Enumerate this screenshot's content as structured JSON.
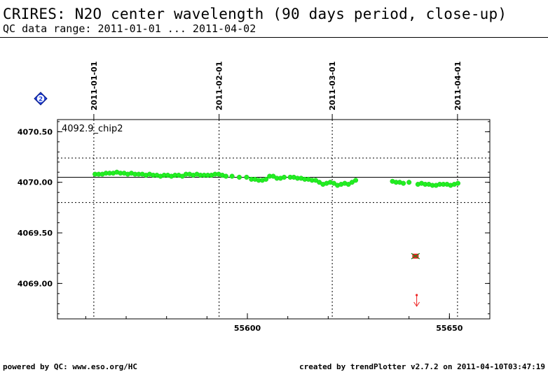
{
  "header": {
    "title": "CRIRES: N2O center wavelength (90 days period, close-up)",
    "subtitle": "QC data range: 2011-01-01 ... 2011-04-02"
  },
  "footer": {
    "left": "powered by QC: www.eso.org/HC",
    "right": "created by trendPlotter v2.7.2 on 2011-04-10T03:47:19"
  },
  "badge": {
    "label": "2",
    "color": "#1f3fd6"
  },
  "colors": {
    "points": "#22ee22",
    "outlier": "#ee2222"
  },
  "chart_data": {
    "type": "scatter",
    "panel_label": "4092.9_chip2",
    "xlim": [
      55553,
      55660
    ],
    "ylim": [
      4068.65,
      4070.62
    ],
    "x_ticks": [
      55600,
      55650
    ],
    "y_ticks": [
      4069.0,
      4069.5,
      4070.0,
      4070.5
    ],
    "y_tick_labels": [
      "4069.00",
      "4069.50",
      "4070.00",
      "4070.50"
    ],
    "reference_line": 4070.05,
    "threshold_lines": [
      4070.24,
      4069.8
    ],
    "date_markers": [
      {
        "label": "2011-01-01",
        "mjd": 55562
      },
      {
        "label": "2011-02-01",
        "mjd": 55593
      },
      {
        "label": "2011-03-01",
        "mjd": 55621
      },
      {
        "label": "2011-04-01",
        "mjd": 55652
      }
    ],
    "series": [
      {
        "values": [
          [
            55562.3,
            4070.08
          ],
          [
            55563.2,
            4070.08
          ],
          [
            55564.1,
            4070.08
          ],
          [
            55565.0,
            4070.09
          ],
          [
            55565.9,
            4070.09
          ],
          [
            55566.8,
            4070.09
          ],
          [
            55567.7,
            4070.1
          ],
          [
            55568.6,
            4070.09
          ],
          [
            55569.5,
            4070.09
          ],
          [
            55570.4,
            4070.08
          ],
          [
            55571.3,
            4070.09
          ],
          [
            55572.2,
            4070.08
          ],
          [
            55573.1,
            4070.08
          ],
          [
            55574.0,
            4070.08
          ],
          [
            55574.9,
            4070.07
          ],
          [
            55575.8,
            4070.08
          ],
          [
            55576.7,
            4070.07
          ],
          [
            55577.6,
            4070.07
          ],
          [
            55578.5,
            4070.06
          ],
          [
            55579.4,
            4070.07
          ],
          [
            55580.3,
            4070.07
          ],
          [
            55581.2,
            4070.06
          ],
          [
            55582.1,
            4070.07
          ],
          [
            55583.0,
            4070.07
          ],
          [
            55583.9,
            4070.06
          ],
          [
            55584.8,
            4070.08
          ],
          [
            55585.7,
            4070.08
          ],
          [
            55586.6,
            4070.07
          ],
          [
            55587.5,
            4070.08
          ],
          [
            55588.4,
            4070.07
          ],
          [
            55589.3,
            4070.07
          ],
          [
            55590.2,
            4070.07
          ],
          [
            55591.1,
            4070.07
          ],
          [
            55592.0,
            4070.08
          ],
          [
            55592.9,
            4070.08
          ],
          [
            55593.8,
            4070.07
          ],
          [
            55594.7,
            4070.06
          ],
          [
            55596.2,
            4070.06
          ],
          [
            55598.0,
            4070.05
          ],
          [
            55599.8,
            4070.05
          ],
          [
            55601.0,
            4070.03
          ],
          [
            55601.9,
            4070.03
          ],
          [
            55602.8,
            4070.02
          ],
          [
            55603.7,
            4070.02
          ],
          [
            55604.6,
            4070.03
          ],
          [
            55605.5,
            4070.06
          ],
          [
            55606.4,
            4070.06
          ],
          [
            55607.3,
            4070.04
          ],
          [
            55608.2,
            4070.04
          ],
          [
            55609.1,
            4070.05
          ],
          [
            55610.6,
            4070.05
          ],
          [
            55611.5,
            4070.05
          ],
          [
            55612.4,
            4070.04
          ],
          [
            55613.3,
            4070.04
          ],
          [
            55614.2,
            4070.03
          ],
          [
            55615.1,
            4070.03
          ],
          [
            55616.0,
            4070.02
          ],
          [
            55616.9,
            4070.02
          ],
          [
            55617.8,
            4070.0
          ],
          [
            55618.7,
            4069.98
          ],
          [
            55619.6,
            4069.99
          ],
          [
            55620.5,
            4070.0
          ],
          [
            55621.4,
            4069.99
          ],
          [
            55622.3,
            4069.97
          ],
          [
            55623.2,
            4069.98
          ],
          [
            55624.1,
            4069.99
          ],
          [
            55625.0,
            4069.98
          ],
          [
            55625.9,
            4070.0
          ],
          [
            55626.8,
            4070.02
          ],
          [
            55635.9,
            4070.01
          ],
          [
            55636.8,
            4070.0
          ],
          [
            55637.7,
            4070.0
          ],
          [
            55638.6,
            4069.99
          ],
          [
            55640.0,
            4070.0
          ],
          [
            55642.2,
            4069.98
          ],
          [
            55643.1,
            4069.99
          ],
          [
            55644.0,
            4069.98
          ],
          [
            55644.9,
            4069.98
          ],
          [
            55645.8,
            4069.97
          ],
          [
            55646.7,
            4069.97
          ],
          [
            55647.6,
            4069.98
          ],
          [
            55648.5,
            4069.98
          ],
          [
            55649.4,
            4069.98
          ],
          [
            55650.3,
            4069.97
          ],
          [
            55651.2,
            4069.98
          ],
          [
            55652.1,
            4069.99
          ]
        ]
      }
    ],
    "outliers": [
      [
        55641.6,
        4069.27
      ]
    ],
    "out_of_range": [
      {
        "x": 55641.9,
        "direction": "below"
      }
    ]
  }
}
